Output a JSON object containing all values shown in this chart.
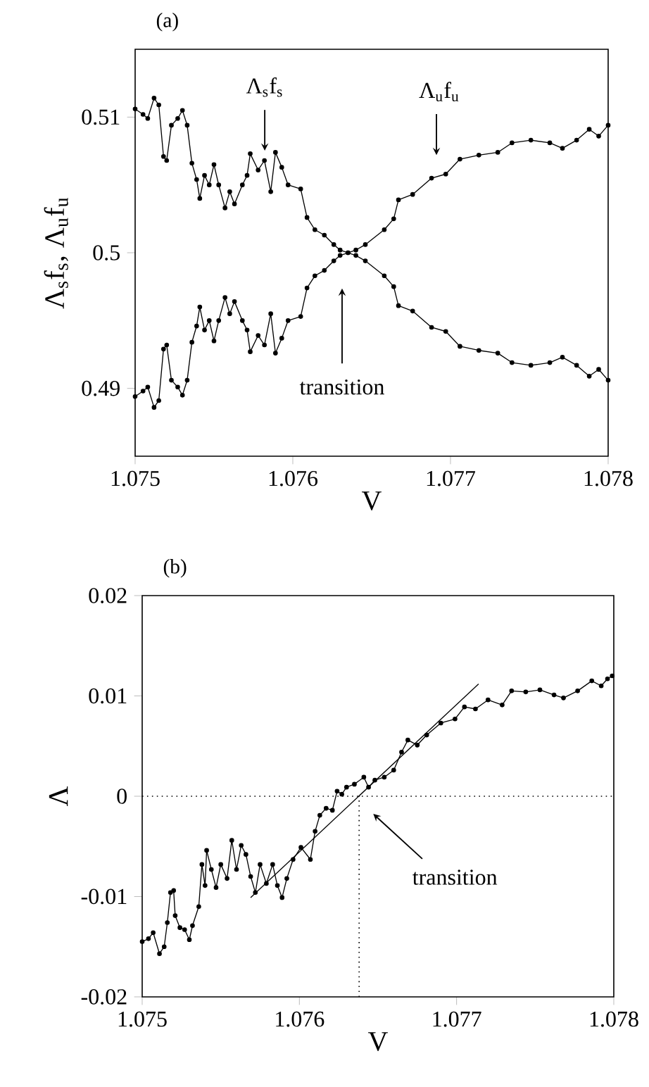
{
  "chart_data": [
    {
      "type": "line",
      "title": "(a)",
      "xlabel": "V",
      "ylabel": "Λ$_{s}$f$_{s}$, Λ$_{u}$f$_{u}$",
      "xlim": [
        1.075,
        1.078
      ],
      "ylim": [
        0.485,
        0.515
      ],
      "xticks": [
        1.075,
        1.076,
        1.077,
        1.078
      ],
      "yticks": [
        0.49,
        0.5,
        0.51
      ],
      "marker": "circle",
      "line_style": "solid",
      "grid": false,
      "series": [
        {
          "color": "#000000",
          "x": [
            1.075,
            1.07505,
            1.07508,
            1.07512,
            1.07515,
            1.07518,
            1.0752,
            1.07523,
            1.07527,
            1.0753,
            1.07533,
            1.07536,
            1.07539,
            1.07541,
            1.07544,
            1.07547,
            1.0755,
            1.07553,
            1.07557,
            1.0756,
            1.07563,
            1.07568,
            1.07571,
            1.07573,
            1.07578,
            1.07582,
            1.07586,
            1.07589,
            1.07593,
            1.07597,
            1.07605,
            1.07609,
            1.07614,
            1.0762,
            1.07626,
            1.0763,
            1.07635,
            1.0764,
            1.07646,
            1.07658,
            1.07664,
            1.07667,
            1.07676,
            1.07688,
            1.07697,
            1.07706,
            1.07718,
            1.0773,
            1.07739,
            1.07751,
            1.07763,
            1.07771,
            1.0778,
            1.07788,
            1.07794,
            1.078
          ],
          "values": [
            0.5106,
            0.5102,
            0.5099,
            0.5114,
            0.5109,
            0.5071,
            0.5068,
            0.5094,
            0.5099,
            0.5105,
            0.5094,
            0.5066,
            0.5054,
            0.504,
            0.5057,
            0.505,
            0.5065,
            0.505,
            0.5033,
            0.5045,
            0.5036,
            0.505,
            0.5057,
            0.5073,
            0.5061,
            0.5068,
            0.5045,
            0.5074,
            0.5063,
            0.505,
            0.5047,
            0.5026,
            0.5017,
            0.5013,
            0.5006,
            0.5002,
            0.5,
            0.4998,
            0.4994,
            0.4983,
            0.4975,
            0.4961,
            0.4957,
            0.4945,
            0.4942,
            0.4931,
            0.4928,
            0.4926,
            0.4919,
            0.4917,
            0.4919,
            0.4923,
            0.4917,
            0.4909,
            0.4914,
            0.4906
          ]
        },
        {
          "color": "#000000",
          "x": [
            1.075,
            1.07505,
            1.07508,
            1.07512,
            1.07515,
            1.07518,
            1.0752,
            1.07523,
            1.07527,
            1.0753,
            1.07533,
            1.07536,
            1.07539,
            1.07541,
            1.07544,
            1.07547,
            1.0755,
            1.07553,
            1.07557,
            1.0756,
            1.07563,
            1.07568,
            1.07571,
            1.07573,
            1.07578,
            1.07582,
            1.07586,
            1.07589,
            1.07593,
            1.07597,
            1.07605,
            1.07609,
            1.07614,
            1.0762,
            1.07626,
            1.0763,
            1.07635,
            1.0764,
            1.07646,
            1.07658,
            1.07664,
            1.07667,
            1.07676,
            1.07688,
            1.07697,
            1.07706,
            1.07718,
            1.0773,
            1.07739,
            1.07751,
            1.07763,
            1.07771,
            1.0778,
            1.07788,
            1.07794,
            1.078
          ],
          "values": [
            0.4894,
            0.4898,
            0.4901,
            0.4886,
            0.4891,
            0.4929,
            0.4932,
            0.4906,
            0.4901,
            0.4895,
            0.4906,
            0.4934,
            0.4946,
            0.496,
            0.4943,
            0.495,
            0.4935,
            0.495,
            0.4967,
            0.4955,
            0.4964,
            0.495,
            0.4943,
            0.4927,
            0.4939,
            0.4932,
            0.4955,
            0.4926,
            0.4937,
            0.495,
            0.4953,
            0.4974,
            0.4983,
            0.4987,
            0.4994,
            0.4998,
            0.5,
            0.5002,
            0.5006,
            0.5017,
            0.5025,
            0.5039,
            0.5043,
            0.5055,
            0.5058,
            0.5069,
            0.5072,
            0.5074,
            0.5081,
            0.5083,
            0.5081,
            0.5077,
            0.5083,
            0.5091,
            0.5086,
            0.5094
          ]
        }
      ],
      "annotations": [
        "Λ$_{s}$f$_{s}$",
        "Λ$_{u}$f$_{u}$",
        "transition"
      ]
    },
    {
      "type": "line",
      "title": "(b)",
      "xlabel": "V",
      "ylabel": "Λ",
      "xlim": [
        1.075,
        1.078
      ],
      "ylim": [
        -0.02,
        0.02
      ],
      "xticks": [
        1.075,
        1.076,
        1.077,
        1.078
      ],
      "yticks": [
        -0.02,
        -0.01,
        0,
        0.01,
        0.02
      ],
      "marker": "circle",
      "line_style": "solid",
      "grid": false,
      "series": [
        {
          "color": "#000000",
          "x": [
            1.075,
            1.07504,
            1.07507,
            1.07511,
            1.07514,
            1.07516,
            1.07518,
            1.0752,
            1.07521,
            1.07524,
            1.07527,
            1.0753,
            1.07532,
            1.07536,
            1.07538,
            1.0754,
            1.07541,
            1.07544,
            1.07547,
            1.0755,
            1.07554,
            1.07557,
            1.0756,
            1.07563,
            1.07566,
            1.07569,
            1.07572,
            1.07575,
            1.07579,
            1.07583,
            1.07586,
            1.07589,
            1.07592,
            1.07596,
            1.07601,
            1.07607,
            1.0761,
            1.07613,
            1.07617,
            1.07621,
            1.07624,
            1.07627,
            1.0763,
            1.07635,
            1.07641,
            1.07644,
            1.07648,
            1.07654,
            1.0766,
            1.07665,
            1.07669,
            1.07675,
            1.07681,
            1.0769,
            1.07699,
            1.07705,
            1.07712,
            1.0772,
            1.07729,
            1.07735,
            1.07744,
            1.07753,
            1.07762,
            1.07768,
            1.07777,
            1.07786,
            1.07792,
            1.07796,
            1.07799
          ],
          "values": [
            -0.0145,
            -0.0142,
            -0.0136,
            -0.0157,
            -0.015,
            -0.0126,
            -0.0096,
            -0.0094,
            -0.0119,
            -0.0131,
            -0.0133,
            -0.0143,
            -0.0129,
            -0.011,
            -0.0068,
            -0.0089,
            -0.0054,
            -0.0073,
            -0.0091,
            -0.0068,
            -0.0082,
            -0.0044,
            -0.0073,
            -0.0049,
            -0.0058,
            -0.008,
            -0.0096,
            -0.0068,
            -0.0087,
            -0.0068,
            -0.0089,
            -0.0101,
            -0.0082,
            -0.0063,
            -0.0051,
            -0.0063,
            -0.0035,
            -0.0019,
            -0.0012,
            -0.0014,
            0.0005,
            0.0002,
            0.0009,
            0.0012,
            0.0019,
            0.0009,
            0.0016,
            0.0019,
            0.0026,
            0.0044,
            0.0056,
            0.0051,
            0.0061,
            0.0073,
            0.0077,
            0.0089,
            0.0087,
            0.0096,
            0.0091,
            0.0105,
            0.0104,
            0.0106,
            0.0101,
            0.0098,
            0.0105,
            0.0115,
            0.011,
            0.0117,
            0.012
          ]
        },
        {
          "type": "line",
          "color": "#000000",
          "marker": "none",
          "x": [
            1.07569,
            1.07714
          ],
          "values": [
            -0.0101,
            0.0112
          ]
        }
      ],
      "ref_lines": [
        {
          "axis": "y",
          "value": 0,
          "line_style": "dotted"
        },
        {
          "axis": "x",
          "value": 1.07638,
          "line_style": "dotted"
        }
      ],
      "annotations": [
        "transition"
      ]
    }
  ]
}
